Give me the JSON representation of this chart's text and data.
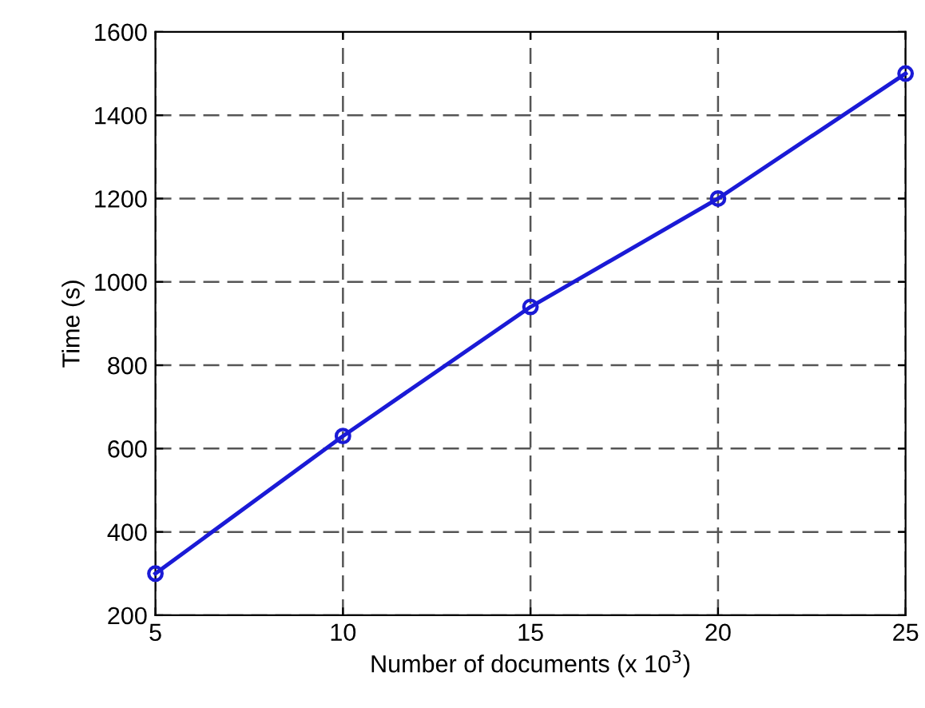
{
  "chart_data": {
    "type": "line",
    "xlabel": "Number of documents (x 10$^{3}$)",
    "ylabel": "Time (s)",
    "x": [
      5,
      10,
      15,
      20,
      25
    ],
    "series": [
      {
        "color": "#1a1ad6",
        "values": [
          300,
          630,
          940,
          1200,
          1500
        ]
      }
    ],
    "xlim": [
      5,
      25
    ],
    "xticks": [
      5,
      10,
      15,
      20,
      25
    ],
    "ylim": [
      200,
      1600
    ],
    "yticks": [
      200,
      400,
      600,
      800,
      1000,
      1200,
      1400,
      1600
    ],
    "grid": true,
    "marker": "circle",
    "line_style": "solid",
    "legend": false
  }
}
